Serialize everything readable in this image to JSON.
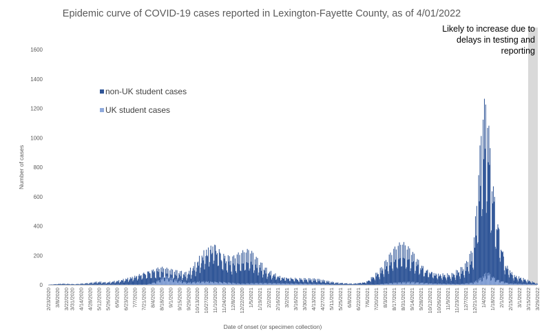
{
  "chart_data": {
    "type": "bar",
    "stacked": true,
    "title": "Epidemic curve of COVID-19 cases reported in Lexington-Fayette County, as of 4/01/2022",
    "xlabel": "Date of onset (or specimen collection)",
    "ylabel": "Number of cases",
    "ylim": [
      0,
      1600
    ],
    "yticks": [
      0,
      200,
      400,
      600,
      800,
      1000,
      1200,
      1400,
      1600
    ],
    "grid": false,
    "legend_position": "upper-left",
    "x_start_date": "2/23/2020",
    "x_end_date": "3/29/2022",
    "xtick_labels": [
      "2/23/2020",
      "3/8/2020",
      "3/22/2020",
      "3/31/2020",
      "4/14/2020",
      "4/28/2020",
      "5/12/2020",
      "5/26/2020",
      "6/9/2020",
      "6/23/2020",
      "7/7/2020",
      "7/21/2020",
      "8/4/2020",
      "8/18/2020",
      "9/1/2020",
      "9/15/2020",
      "9/29/2020",
      "10/13/2020",
      "10/27/2020",
      "11/10/2020",
      "11/24/2020",
      "12/8/2020",
      "12/22/2020",
      "1/5/2021",
      "1/19/2021",
      "2/2/2021",
      "2/16/2021",
      "3/2/2021",
      "3/16/2021",
      "3/30/2021",
      "4/13/2021",
      "4/27/2021",
      "5/11/2021",
      "5/25/2021",
      "6/8/2021",
      "6/22/2021",
      "7/6/2021",
      "7/20/2021",
      "8/3/2021",
      "8/17/2021",
      "8/31/2021",
      "9/14/2021",
      "9/28/2021",
      "10/12/2021",
      "10/26/2021",
      "11/9/2021",
      "11/23/2021",
      "12/7/2021",
      "12/21/2021",
      "1/4/2022",
      "1/18/2022",
      "2/1/2022",
      "2/15/2022",
      "3/1/2022",
      "3/15/2022",
      "3/29/2022"
    ],
    "series": [
      {
        "name": "non-UK student cases",
        "color": "#2f5597",
        "weekly_total_estimates": [
          {
            "date": "2/23/2020",
            "value": 1
          },
          {
            "date": "3/15/2020",
            "value": 8
          },
          {
            "date": "4/5/2020",
            "value": 5
          },
          {
            "date": "4/26/2020",
            "value": 12
          },
          {
            "date": "5/10/2020",
            "value": 20
          },
          {
            "date": "5/24/2020",
            "value": 15
          },
          {
            "date": "6/14/2020",
            "value": 28
          },
          {
            "date": "7/5/2020",
            "value": 55
          },
          {
            "date": "7/26/2020",
            "value": 90
          },
          {
            "date": "8/16/2020",
            "value": 110
          },
          {
            "date": "9/6/2020",
            "value": 85
          },
          {
            "date": "9/27/2020",
            "value": 70
          },
          {
            "date": "10/11/2020",
            "value": 140
          },
          {
            "date": "10/25/2020",
            "value": 230
          },
          {
            "date": "11/8/2020",
            "value": 290
          },
          {
            "date": "11/22/2020",
            "value": 200
          },
          {
            "date": "12/6/2020",
            "value": 170
          },
          {
            "date": "12/20/2020",
            "value": 190
          },
          {
            "date": "1/3/2021",
            "value": 200
          },
          {
            "date": "1/17/2021",
            "value": 140
          },
          {
            "date": "1/31/2021",
            "value": 90
          },
          {
            "date": "2/21/2021",
            "value": 55
          },
          {
            "date": "3/21/2021",
            "value": 42
          },
          {
            "date": "4/18/2021",
            "value": 35
          },
          {
            "date": "5/16/2021",
            "value": 15
          },
          {
            "date": "6/13/2021",
            "value": 8
          },
          {
            "date": "7/4/2021",
            "value": 20
          },
          {
            "date": "7/25/2021",
            "value": 90
          },
          {
            "date": "8/15/2021",
            "value": 200
          },
          {
            "date": "8/29/2021",
            "value": 245
          },
          {
            "date": "9/12/2021",
            "value": 210
          },
          {
            "date": "10/3/2021",
            "value": 110
          },
          {
            "date": "10/24/2021",
            "value": 75
          },
          {
            "date": "11/14/2021",
            "value": 65
          },
          {
            "date": "12/5/2021",
            "value": 110
          },
          {
            "date": "12/19/2021",
            "value": 220
          },
          {
            "date": "12/26/2021",
            "value": 600
          },
          {
            "date": "1/2/2022",
            "value": 1050
          },
          {
            "date": "1/9/2022",
            "value": 1150
          },
          {
            "date": "1/16/2022",
            "value": 750
          },
          {
            "date": "1/23/2022",
            "value": 500
          },
          {
            "date": "2/6/2022",
            "value": 150
          },
          {
            "date": "2/20/2022",
            "value": 65
          },
          {
            "date": "3/13/2022",
            "value": 30
          },
          {
            "date": "3/29/2022",
            "value": 8
          }
        ]
      },
      {
        "name": "UK student cases",
        "color": "#8faadc",
        "weekly_total_estimates": [
          {
            "date": "2/23/2020",
            "value": 0
          },
          {
            "date": "7/26/2020",
            "value": 3
          },
          {
            "date": "8/9/2020",
            "value": 20
          },
          {
            "date": "8/23/2020",
            "value": 55
          },
          {
            "date": "9/6/2020",
            "value": 35
          },
          {
            "date": "9/27/2020",
            "value": 15
          },
          {
            "date": "10/25/2020",
            "value": 25
          },
          {
            "date": "11/22/2020",
            "value": 20
          },
          {
            "date": "12/20/2020",
            "value": 8
          },
          {
            "date": "1/17/2021",
            "value": 12
          },
          {
            "date": "2/14/2021",
            "value": 12
          },
          {
            "date": "4/4/2021",
            "value": 8
          },
          {
            "date": "5/16/2021",
            "value": 2
          },
          {
            "date": "7/18/2021",
            "value": 2
          },
          {
            "date": "8/22/2021",
            "value": 15
          },
          {
            "date": "9/12/2021",
            "value": 20
          },
          {
            "date": "10/17/2021",
            "value": 10
          },
          {
            "date": "11/28/2021",
            "value": 5
          },
          {
            "date": "12/19/2021",
            "value": 15
          },
          {
            "date": "1/2/2022",
            "value": 50
          },
          {
            "date": "1/9/2022",
            "value": 85
          },
          {
            "date": "1/23/2022",
            "value": 40
          },
          {
            "date": "2/13/2022",
            "value": 10
          },
          {
            "date": "3/29/2022",
            "value": 3
          }
        ]
      }
    ],
    "annotation": {
      "lines": [
        "Likely to increase due to",
        "delays in testing and",
        "reporting"
      ],
      "shaded_start_date": "3/15/2022",
      "shaded_end_date": "3/29/2022",
      "shade_color": "#d9d9d9"
    }
  }
}
